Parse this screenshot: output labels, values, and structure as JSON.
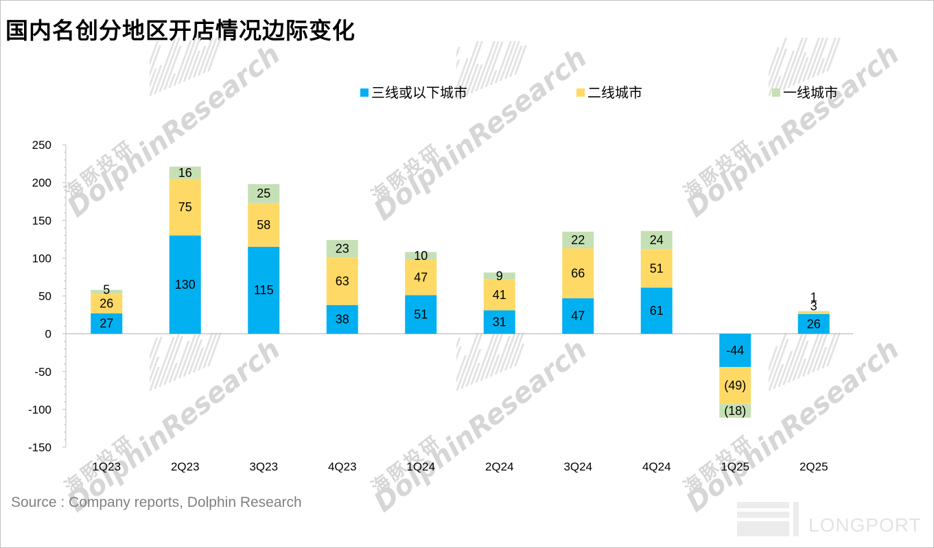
{
  "title": "国内名创分地区开店情况边际变化",
  "source": "Source : Company reports, Dolphin Research",
  "watermark": {
    "cn": "海豚投研",
    "en": "DolphinResearch",
    "logo": "LONGPORT"
  },
  "colors": {
    "tier3": "#00b0f0",
    "tier2": "#ffd966",
    "tier1": "#c5e0b4",
    "axis": "#bfbfbf"
  },
  "chart_data": {
    "type": "bar",
    "stacked": true,
    "title": "国内名创分地区开店情况边际变化",
    "categories": [
      "1Q23",
      "2Q23",
      "3Q23",
      "4Q23",
      "1Q24",
      "2Q24",
      "3Q24",
      "4Q24",
      "1Q25",
      "2Q25"
    ],
    "series": [
      {
        "name": "三线或以下城市",
        "key": "tier3",
        "values": [
          27,
          130,
          115,
          38,
          51,
          31,
          47,
          61,
          -44,
          26
        ],
        "labels": [
          "27",
          "130",
          "115",
          "38",
          "51",
          "31",
          "47",
          "61",
          "-44",
          "26"
        ]
      },
      {
        "name": "二线城市",
        "key": "tier2",
        "values": [
          26,
          75,
          58,
          63,
          47,
          41,
          66,
          51,
          -49,
          3
        ],
        "labels": [
          "26",
          "75",
          "58",
          "63",
          "47",
          "41",
          "66",
          "51",
          "(49)",
          "3"
        ]
      },
      {
        "name": "一线城市",
        "key": "tier1",
        "values": [
          5,
          16,
          25,
          23,
          10,
          9,
          22,
          24,
          -18,
          1
        ],
        "labels": [
          "5",
          "16",
          "25",
          "23",
          "10",
          "9",
          "22",
          "24",
          "(18)",
          "1"
        ]
      }
    ],
    "ylim": [
      -150,
      250
    ],
    "yticks": [
      250,
      200,
      150,
      100,
      50,
      0,
      -50,
      -100,
      -150
    ],
    "legend": [
      "三线或以下城市",
      "二线城市",
      "一线城市"
    ],
    "legend_position": "top-center",
    "xlabel": "",
    "ylabel": ""
  }
}
